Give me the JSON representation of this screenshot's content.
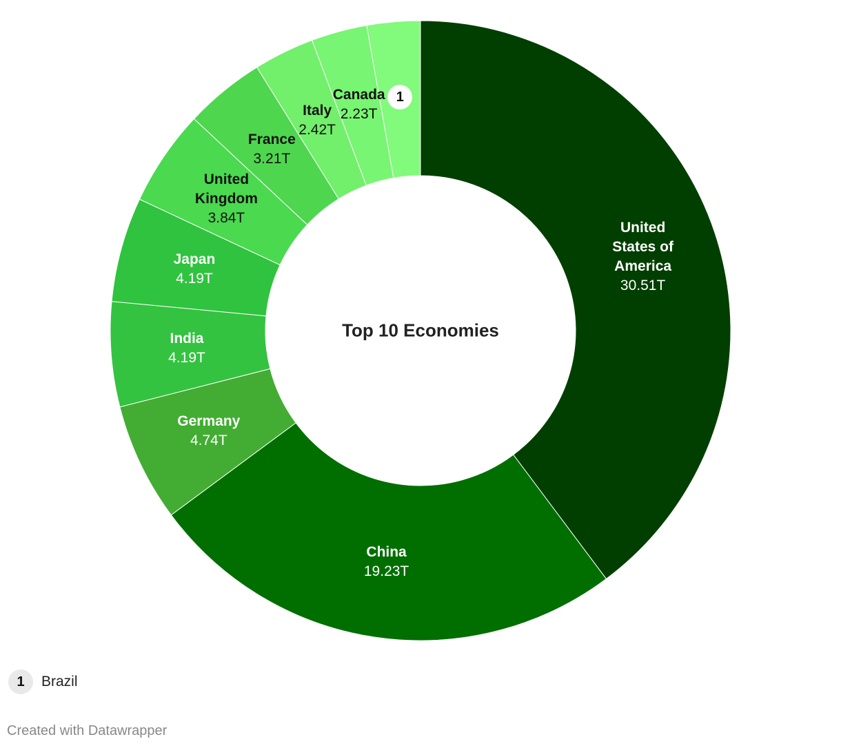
{
  "chart_data": {
    "type": "donut",
    "title": "Top 10 Economies",
    "categories": [
      "United States of America",
      "China",
      "Germany",
      "India",
      "Japan",
      "United Kingdom",
      "France",
      "Italy",
      "Canada",
      "Brazil"
    ],
    "values": [
      30.51,
      19.23,
      4.74,
      4.19,
      4.19,
      3.84,
      3.21,
      2.42,
      2.23,
      2.13
    ],
    "value_labels": [
      "30.51T",
      "19.23T",
      "4.74T",
      "4.19T",
      "4.19T",
      "3.84T",
      "3.21T",
      "2.42T",
      "2.23T",
      null
    ],
    "colors": [
      "#003f00",
      "#006f00",
      "#42ad32",
      "#33c340",
      "#30c33f",
      "#4ad94f",
      "#4fd64f",
      "#72ef6b",
      "#78f572",
      "#82fa7c"
    ],
    "annotation_marker": "1",
    "credit": "Created with Datawrapper"
  }
}
